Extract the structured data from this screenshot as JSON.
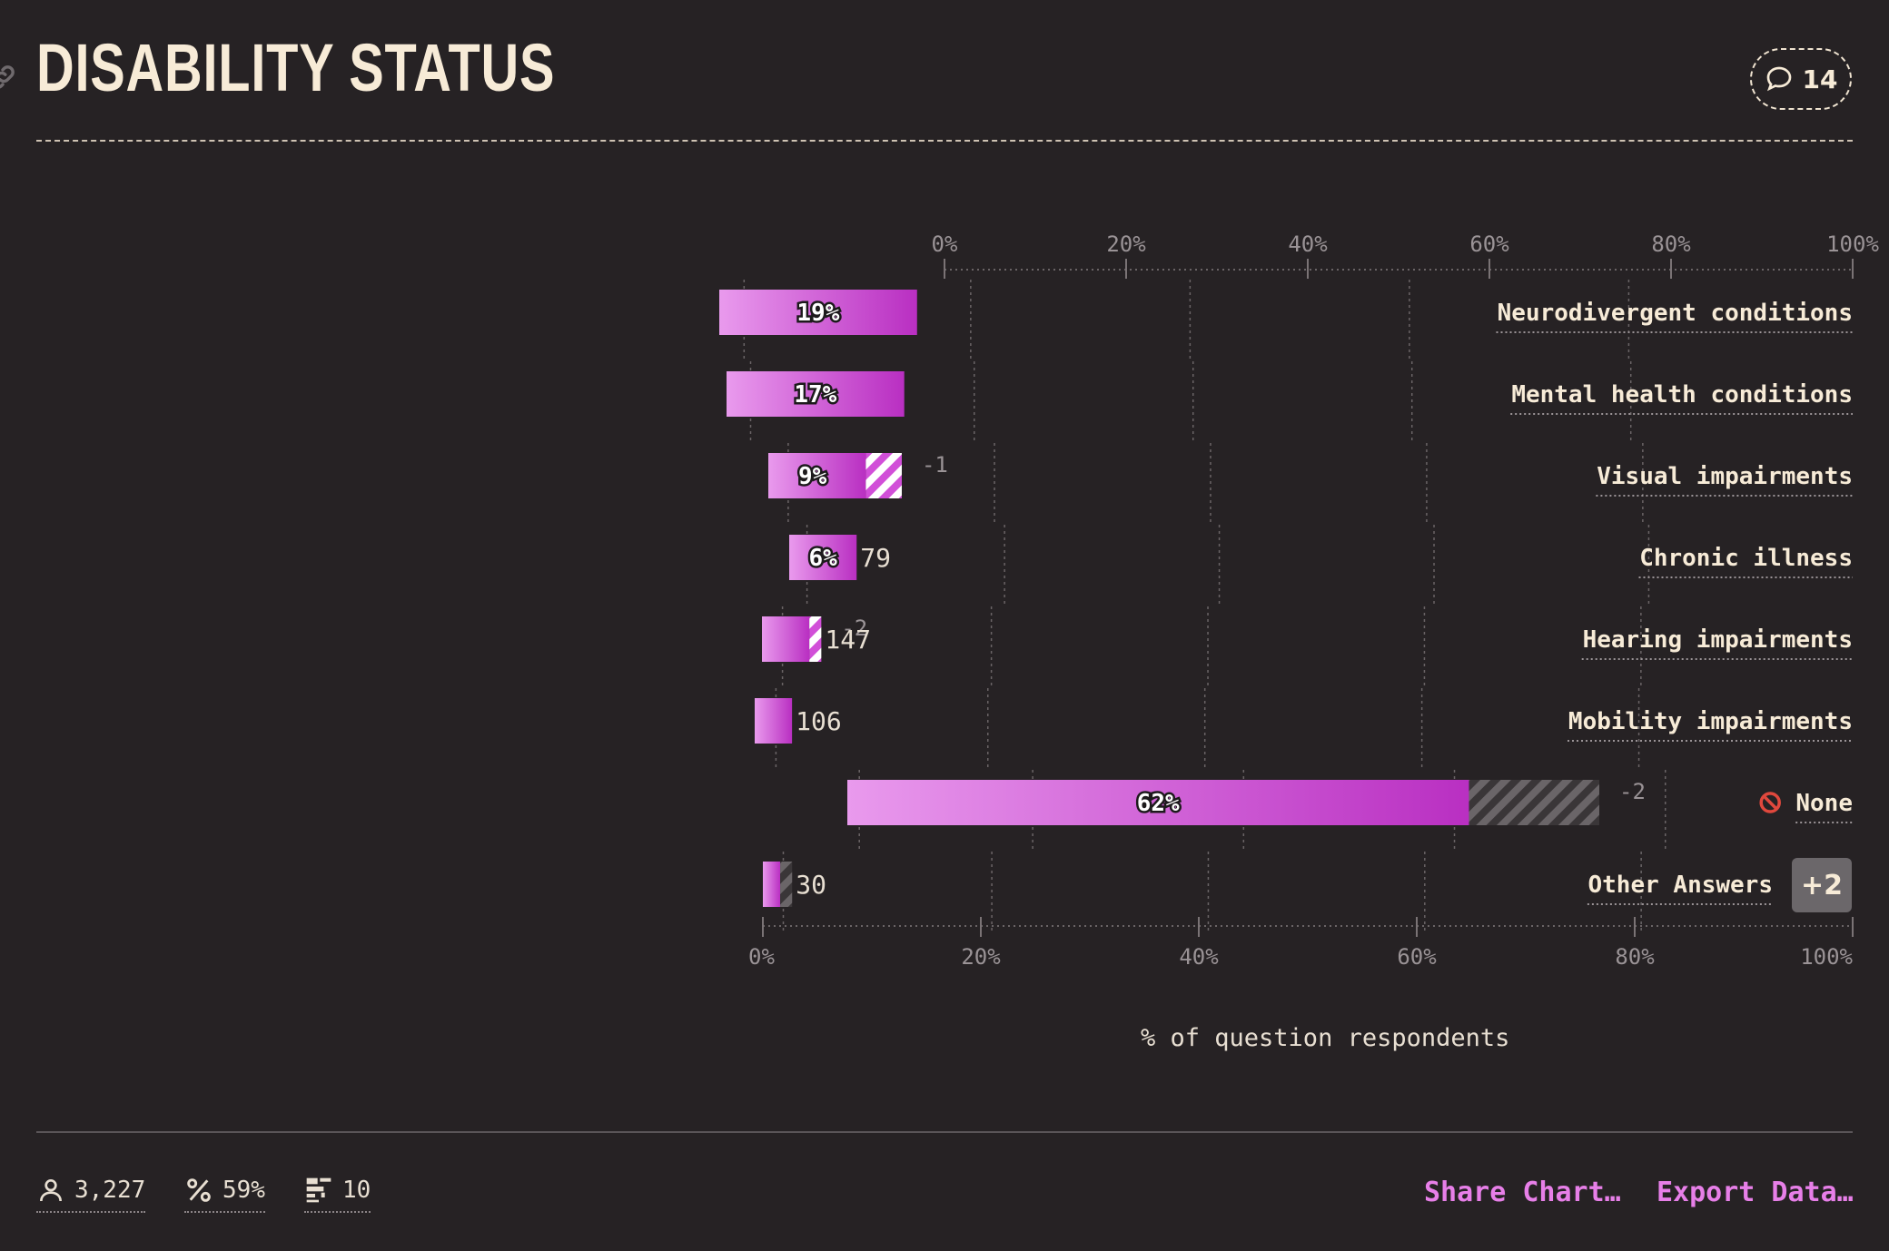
{
  "header": {
    "title": "DISABILITY STATUS",
    "comment_count": "14"
  },
  "chart_data": {
    "type": "bar",
    "orientation": "horizontal",
    "x_axis_ticks": [
      "0%",
      "20%",
      "40%",
      "60%",
      "80%",
      "100%"
    ],
    "xlabel": "% of question respondents",
    "xlim": [
      0,
      100
    ],
    "grid": true,
    "categories": [
      "Neurodivergent conditions",
      "Mental health conditions",
      "Visual impairments",
      "Chronic illness",
      "Hearing impairments",
      "Mobility impairments",
      "None",
      "Other Answers"
    ],
    "values": [
      19,
      17,
      9,
      6,
      4,
      3,
      62,
      1
    ],
    "value_labels": [
      "19%",
      "17%",
      "9%",
      "6%",
      "",
      "",
      "62%",
      ""
    ],
    "count_labels": [
      "",
      "",
      "",
      "79",
      "147",
      "106",
      "",
      "30"
    ],
    "delta_labels": [
      "",
      "",
      "-1",
      "",
      "-2",
      "",
      "-2",
      ""
    ],
    "hatched_extension": [
      0,
      0,
      3,
      0,
      1,
      0,
      13,
      1
    ],
    "none_icon": "prohibited-icon",
    "other_badge": "+2",
    "colors": {
      "bar_start": "#e99aed",
      "bar_end": "#b92fc2",
      "hatch_pink": "#d14fd8",
      "hatch_gray": "#6a6568"
    }
  },
  "footer": {
    "respondents": "3,227",
    "percent": "59%",
    "questions": "10",
    "share_label": "Share Chart…",
    "export_label": "Export Data…"
  }
}
